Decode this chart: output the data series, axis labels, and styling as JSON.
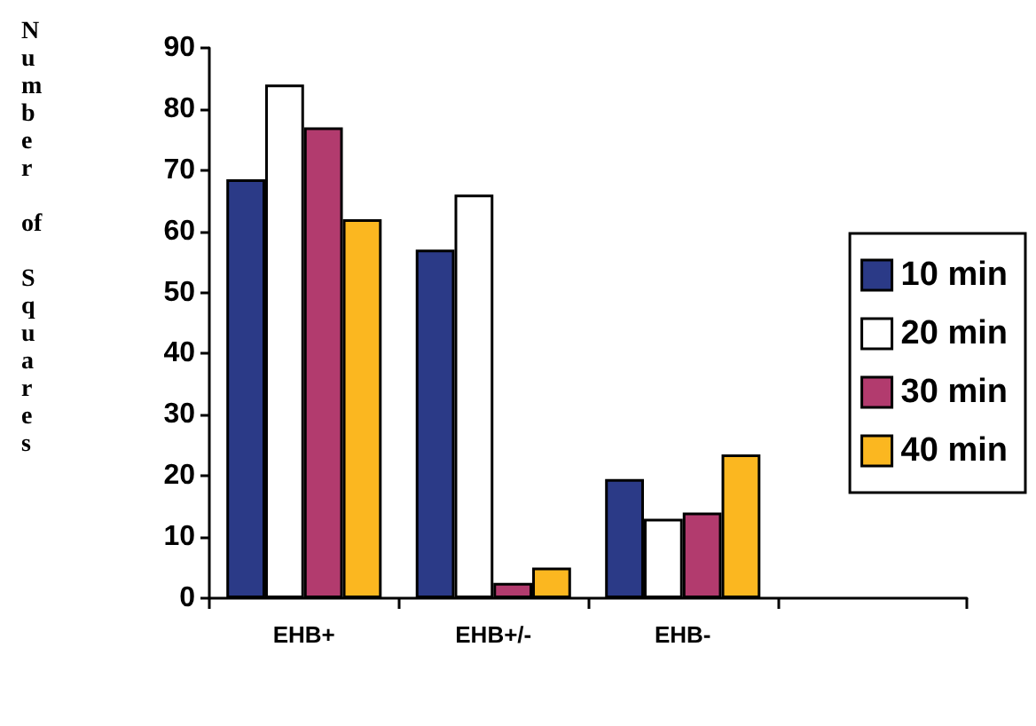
{
  "chart_data": {
    "type": "bar",
    "ylabel": "Number of Squares",
    "categories": [
      "EHB+",
      "EHB+/-",
      "EHB-",
      null
    ],
    "series": [
      {
        "name": "10 min",
        "color": "#2b3a87",
        "values": [
          68.5,
          57,
          19.5,
          null
        ]
      },
      {
        "name": "20 min",
        "color": "#ffffff",
        "values": [
          84,
          66,
          13,
          null
        ]
      },
      {
        "name": "30 min",
        "color": "#b23b6e",
        "values": [
          77,
          2.5,
          14,
          null
        ]
      },
      {
        "name": "40 min",
        "color": "#fbb720",
        "values": [
          62,
          5,
          23.5,
          null
        ]
      }
    ],
    "ylim": [
      0,
      90
    ],
    "yticks": [
      0,
      10,
      20,
      30,
      40,
      50,
      60,
      70,
      80,
      90
    ],
    "grid": false,
    "legend": "right"
  }
}
